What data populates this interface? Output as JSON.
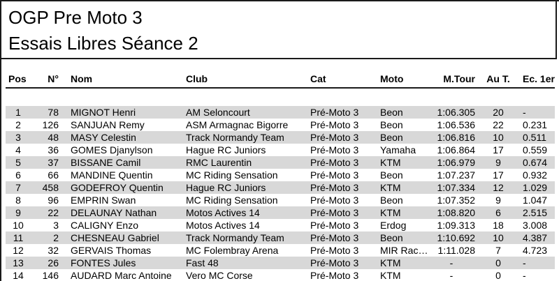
{
  "header": {
    "title": "OGP Pre Moto 3",
    "subtitle": "Essais Libres Séance 2"
  },
  "table": {
    "columns": [
      {
        "key": "pos",
        "label": "Pos"
      },
      {
        "key": "num",
        "label": "N°"
      },
      {
        "key": "nom",
        "label": "Nom"
      },
      {
        "key": "club",
        "label": "Club"
      },
      {
        "key": "cat",
        "label": "Cat"
      },
      {
        "key": "moto",
        "label": "Moto"
      },
      {
        "key": "mtour",
        "label": "M.Tour"
      },
      {
        "key": "aut",
        "label": "Au T."
      },
      {
        "key": "ec",
        "label": "Ec. 1er"
      }
    ],
    "rows": [
      {
        "pos": "1",
        "num": "78",
        "nom": "MIGNOT Henri",
        "club": "AM Seloncourt",
        "cat": "Pré-Moto 3",
        "moto": "Beon",
        "mtour": "1:06.305",
        "aut": "20",
        "ec": "-"
      },
      {
        "pos": "2",
        "num": "126",
        "nom": "SANJUAN Remy",
        "club": "ASM Armagnac Bigorre",
        "cat": "Pré-Moto 3",
        "moto": "Beon",
        "mtour": "1:06.536",
        "aut": "22",
        "ec": "0.231"
      },
      {
        "pos": "3",
        "num": "48",
        "nom": "MASY Celestin",
        "club": "Track Normandy Team",
        "cat": "Pré-Moto 3",
        "moto": "Beon",
        "mtour": "1:06.816",
        "aut": "10",
        "ec": "0.511"
      },
      {
        "pos": "4",
        "num": "36",
        "nom": "GOMES Djanylson",
        "club": "Hague RC Juniors",
        "cat": "Pré-Moto 3",
        "moto": "Yamaha",
        "mtour": "1:06.864",
        "aut": "17",
        "ec": "0.559"
      },
      {
        "pos": "5",
        "num": "37",
        "nom": "BISSANE Camil",
        "club": "RMC Laurentin",
        "cat": "Pré-Moto 3",
        "moto": "KTM",
        "mtour": "1:06.979",
        "aut": "9",
        "ec": "0.674"
      },
      {
        "pos": "6",
        "num": "66",
        "nom": "MANDINE Quentin",
        "club": "MC Riding Sensation",
        "cat": "Pré-Moto 3",
        "moto": "Beon",
        "mtour": "1:07.237",
        "aut": "17",
        "ec": "0.932"
      },
      {
        "pos": "7",
        "num": "458",
        "nom": "GODEFROY Quentin",
        "club": "Hague RC Juniors",
        "cat": "Pré-Moto 3",
        "moto": "KTM",
        "mtour": "1:07.334",
        "aut": "12",
        "ec": "1.029"
      },
      {
        "pos": "8",
        "num": "96",
        "nom": "EMPRIN Swan",
        "club": "MC Riding Sensation",
        "cat": "Pré-Moto 3",
        "moto": "Beon",
        "mtour": "1:07.352",
        "aut": "9",
        "ec": "1.047"
      },
      {
        "pos": "9",
        "num": "22",
        "nom": "DELAUNAY Nathan",
        "club": "Motos Actives 14",
        "cat": "Pré-Moto 3",
        "moto": "KTM",
        "mtour": "1:08.820",
        "aut": "6",
        "ec": "2.515"
      },
      {
        "pos": "10",
        "num": "3",
        "nom": "CALIGNY Enzo",
        "club": "Motos Actives 14",
        "cat": "Pré-Moto 3",
        "moto": "Erdog",
        "mtour": "1:09.313",
        "aut": "18",
        "ec": "3.008"
      },
      {
        "pos": "11",
        "num": "2",
        "nom": "CHESNEAU Gabriel",
        "club": "Track Normandy Team",
        "cat": "Pré-Moto 3",
        "moto": "Beon",
        "mtour": "1:10.692",
        "aut": "10",
        "ec": "4.387"
      },
      {
        "pos": "12",
        "num": "32",
        "nom": "GERVAIS Thomas",
        "club": "MC Folembray Arena",
        "cat": "Pré-Moto 3",
        "moto": "MIR Rac…",
        "mtour": "1:11.028",
        "aut": "7",
        "ec": "4.723"
      },
      {
        "pos": "13",
        "num": "26",
        "nom": "FONTES Jules",
        "club": "Fast 48",
        "cat": "Pré-Moto 3",
        "moto": "KTM",
        "mtour": "-",
        "aut": "0",
        "ec": "-"
      },
      {
        "pos": "14",
        "num": "146",
        "nom": "AUDARD Marc Antoine",
        "club": "Vero MC Corse",
        "cat": "Pré-Moto 3",
        "moto": "KTM",
        "mtour": "-",
        "aut": "0",
        "ec": "-"
      }
    ]
  },
  "colors": {
    "stripe": "#d8d8d8",
    "line": "#1a1a1a"
  }
}
